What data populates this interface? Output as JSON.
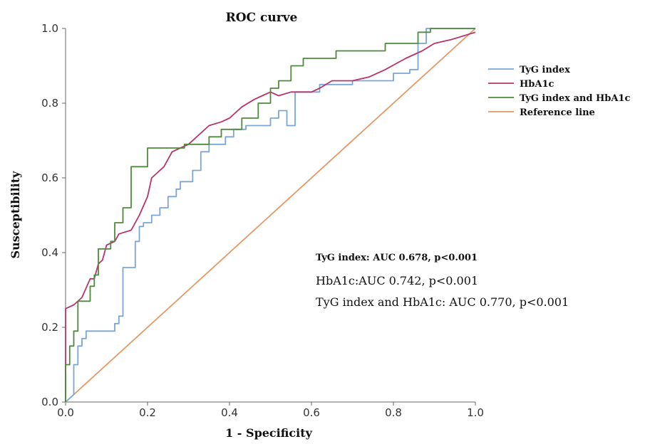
{
  "chart_data": {
    "type": "line",
    "title": "ROC curve",
    "xlabel": "1 - Specificity",
    "ylabel": "Susceptibility",
    "xlim": [
      0,
      1
    ],
    "ylim": [
      0,
      1
    ],
    "x_ticks": [
      "0.0",
      "0.2",
      "0.4",
      "0.6",
      "0.8",
      "1.0"
    ],
    "y_ticks": [
      "0.0",
      "0.2",
      "0.4",
      "0.6",
      "0.8",
      "1.0"
    ],
    "grid": false,
    "legend_position": "right",
    "series": [
      {
        "name": "TyG index",
        "color": "#7aa6d6",
        "points": [
          [
            0,
            0
          ],
          [
            0.02,
            0.02
          ],
          [
            0.02,
            0.1
          ],
          [
            0.03,
            0.1
          ],
          [
            0.03,
            0.15
          ],
          [
            0.04,
            0.15
          ],
          [
            0.04,
            0.17
          ],
          [
            0.05,
            0.17
          ],
          [
            0.05,
            0.19
          ],
          [
            0.12,
            0.19
          ],
          [
            0.12,
            0.21
          ],
          [
            0.13,
            0.21
          ],
          [
            0.13,
            0.23
          ],
          [
            0.14,
            0.23
          ],
          [
            0.14,
            0.36
          ],
          [
            0.17,
            0.36
          ],
          [
            0.17,
            0.43
          ],
          [
            0.18,
            0.43
          ],
          [
            0.18,
            0.47
          ],
          [
            0.19,
            0.47
          ],
          [
            0.19,
            0.48
          ],
          [
            0.21,
            0.48
          ],
          [
            0.21,
            0.5
          ],
          [
            0.23,
            0.5
          ],
          [
            0.23,
            0.52
          ],
          [
            0.25,
            0.52
          ],
          [
            0.25,
            0.55
          ],
          [
            0.27,
            0.55
          ],
          [
            0.27,
            0.57
          ],
          [
            0.28,
            0.57
          ],
          [
            0.28,
            0.59
          ],
          [
            0.31,
            0.59
          ],
          [
            0.31,
            0.62
          ],
          [
            0.33,
            0.62
          ],
          [
            0.33,
            0.67
          ],
          [
            0.35,
            0.67
          ],
          [
            0.35,
            0.69
          ],
          [
            0.39,
            0.69
          ],
          [
            0.39,
            0.71
          ],
          [
            0.41,
            0.71
          ],
          [
            0.41,
            0.73
          ],
          [
            0.44,
            0.73
          ],
          [
            0.44,
            0.74
          ],
          [
            0.5,
            0.74
          ],
          [
            0.5,
            0.76
          ],
          [
            0.52,
            0.76
          ],
          [
            0.52,
            0.78
          ],
          [
            0.54,
            0.78
          ],
          [
            0.54,
            0.74
          ],
          [
            0.56,
            0.74
          ],
          [
            0.56,
            0.83
          ],
          [
            0.62,
            0.83
          ],
          [
            0.62,
            0.85
          ],
          [
            0.7,
            0.85
          ],
          [
            0.7,
            0.86
          ],
          [
            0.8,
            0.86
          ],
          [
            0.8,
            0.88
          ],
          [
            0.84,
            0.88
          ],
          [
            0.84,
            0.89
          ],
          [
            0.86,
            0.89
          ],
          [
            0.86,
            0.96
          ],
          [
            0.88,
            0.96
          ],
          [
            0.88,
            1.0
          ],
          [
            1.0,
            1.0
          ]
        ]
      },
      {
        "name": "HbA1c",
        "color": "#b8336a",
        "points": [
          [
            0,
            0
          ],
          [
            0,
            0.25
          ],
          [
            0.02,
            0.26
          ],
          [
            0.04,
            0.28
          ],
          [
            0.06,
            0.33
          ],
          [
            0.07,
            0.33
          ],
          [
            0.08,
            0.37
          ],
          [
            0.09,
            0.38
          ],
          [
            0.1,
            0.42
          ],
          [
            0.12,
            0.43
          ],
          [
            0.13,
            0.45
          ],
          [
            0.16,
            0.46
          ],
          [
            0.18,
            0.5
          ],
          [
            0.2,
            0.55
          ],
          [
            0.21,
            0.6
          ],
          [
            0.24,
            0.63
          ],
          [
            0.26,
            0.67
          ],
          [
            0.28,
            0.68
          ],
          [
            0.3,
            0.69
          ],
          [
            0.33,
            0.72
          ],
          [
            0.35,
            0.74
          ],
          [
            0.38,
            0.75
          ],
          [
            0.4,
            0.76
          ],
          [
            0.43,
            0.79
          ],
          [
            0.46,
            0.81
          ],
          [
            0.48,
            0.82
          ],
          [
            0.5,
            0.83
          ],
          [
            0.52,
            0.82
          ],
          [
            0.55,
            0.83
          ],
          [
            0.6,
            0.83
          ],
          [
            0.62,
            0.84
          ],
          [
            0.65,
            0.86
          ],
          [
            0.7,
            0.86
          ],
          [
            0.74,
            0.87
          ],
          [
            0.78,
            0.89
          ],
          [
            0.83,
            0.92
          ],
          [
            0.87,
            0.94
          ],
          [
            0.9,
            0.96
          ],
          [
            0.94,
            0.97
          ],
          [
            1.0,
            0.99
          ]
        ]
      },
      {
        "name": "TyG index and HbA1c",
        "color": "#4f8a3c",
        "points": [
          [
            0,
            0
          ],
          [
            0,
            0.1
          ],
          [
            0.01,
            0.1
          ],
          [
            0.01,
            0.15
          ],
          [
            0.02,
            0.15
          ],
          [
            0.02,
            0.19
          ],
          [
            0.03,
            0.19
          ],
          [
            0.03,
            0.27
          ],
          [
            0.06,
            0.27
          ],
          [
            0.06,
            0.31
          ],
          [
            0.07,
            0.31
          ],
          [
            0.07,
            0.34
          ],
          [
            0.08,
            0.34
          ],
          [
            0.08,
            0.41
          ],
          [
            0.11,
            0.41
          ],
          [
            0.11,
            0.43
          ],
          [
            0.12,
            0.43
          ],
          [
            0.12,
            0.48
          ],
          [
            0.14,
            0.48
          ],
          [
            0.14,
            0.52
          ],
          [
            0.16,
            0.52
          ],
          [
            0.16,
            0.63
          ],
          [
            0.2,
            0.63
          ],
          [
            0.2,
            0.68
          ],
          [
            0.29,
            0.68
          ],
          [
            0.29,
            0.69
          ],
          [
            0.35,
            0.69
          ],
          [
            0.35,
            0.71
          ],
          [
            0.38,
            0.71
          ],
          [
            0.38,
            0.73
          ],
          [
            0.43,
            0.73
          ],
          [
            0.43,
            0.76
          ],
          [
            0.47,
            0.76
          ],
          [
            0.47,
            0.8
          ],
          [
            0.5,
            0.8
          ],
          [
            0.5,
            0.84
          ],
          [
            0.52,
            0.84
          ],
          [
            0.52,
            0.86
          ],
          [
            0.55,
            0.86
          ],
          [
            0.55,
            0.9
          ],
          [
            0.58,
            0.9
          ],
          [
            0.58,
            0.92
          ],
          [
            0.66,
            0.92
          ],
          [
            0.66,
            0.94
          ],
          [
            0.78,
            0.94
          ],
          [
            0.78,
            0.96
          ],
          [
            0.86,
            0.96
          ],
          [
            0.86,
            0.99
          ],
          [
            0.89,
            0.99
          ],
          [
            0.89,
            1.0
          ],
          [
            1.0,
            1.0
          ]
        ]
      },
      {
        "name": "Reference line",
        "color": "#e59866",
        "points": [
          [
            0,
            0
          ],
          [
            1,
            1
          ]
        ]
      }
    ],
    "annotations": [
      "TyG index: AUC 0.678, p<0.001",
      "HbA1c:AUC 0.742, p<0.001",
      "TyG index and HbA1c: AUC 0.770, p<0.001"
    ]
  }
}
